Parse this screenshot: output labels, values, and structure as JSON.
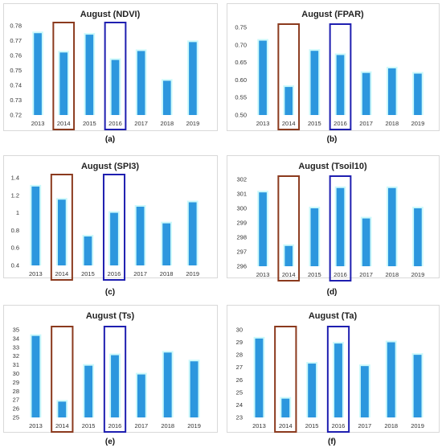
{
  "chart_data": [
    {
      "type": "bar",
      "title": "August (NDVI)",
      "caption": "(a)",
      "categories": [
        "2013",
        "2014",
        "2015",
        "2016",
        "2017",
        "2018",
        "2019"
      ],
      "values": [
        0.775,
        0.762,
        0.774,
        0.757,
        0.763,
        0.743,
        0.769
      ],
      "ylim": [
        0.72,
        0.78
      ],
      "yticks": [
        "0.72",
        "0.73",
        "0.74",
        "0.75",
        "0.76",
        "0.77",
        "0.78"
      ],
      "highlights": [
        {
          "category": "2014",
          "color": "#8b3a1e"
        },
        {
          "category": "2016",
          "color": "#1f1fb0"
        }
      ]
    },
    {
      "type": "bar",
      "title": "August (FPAR)",
      "caption": "(b)",
      "categories": [
        "2013",
        "2014",
        "2015",
        "2016",
        "2017",
        "2018",
        "2019"
      ],
      "values": [
        0.712,
        0.58,
        0.683,
        0.671,
        0.62,
        0.633,
        0.618
      ],
      "ylim": [
        0.5,
        0.75
      ],
      "yticks": [
        "0.50",
        "0.55",
        "0.60",
        "0.65",
        "0.70",
        "0.75"
      ],
      "highlights": [
        {
          "category": "2014",
          "color": "#8b3a1e"
        },
        {
          "category": "2016",
          "color": "#1f1fb0"
        }
      ]
    },
    {
      "type": "bar",
      "title": "August (SPI3)",
      "caption": "(c)",
      "categories": [
        "2013",
        "2014",
        "2015",
        "2016",
        "2017",
        "2018",
        "2019"
      ],
      "values": [
        1.3,
        1.15,
        0.73,
        1.0,
        1.07,
        0.88,
        1.12
      ],
      "ylim": [
        0.4,
        1.4
      ],
      "yticks": [
        "0.4",
        "0.6",
        "0.8",
        "1",
        "1.2",
        "1.4"
      ],
      "highlights": [
        {
          "category": "2014",
          "color": "#8b3a1e"
        },
        {
          "category": "2016",
          "color": "#1f1fb0"
        }
      ]
    },
    {
      "type": "bar",
      "title": "August (Tsoil10)",
      "caption": "(d)",
      "categories": [
        "2013",
        "2014",
        "2015",
        "2016",
        "2017",
        "2018",
        "2019"
      ],
      "values": [
        301.1,
        297.4,
        300.0,
        301.4,
        299.3,
        301.4,
        300.0
      ],
      "ylim": [
        296,
        302
      ],
      "yticks": [
        "296",
        "297",
        "298",
        "299",
        "300",
        "301",
        "302"
      ],
      "highlights": [
        {
          "category": "2014",
          "color": "#8b3a1e"
        },
        {
          "category": "2016",
          "color": "#1f1fb0"
        }
      ]
    },
    {
      "type": "bar",
      "title": "August (Ts)",
      "caption": "(e)",
      "categories": [
        "2013",
        "2014",
        "2015",
        "2016",
        "2017",
        "2018",
        "2019"
      ],
      "values": [
        34.3,
        26.8,
        30.9,
        32.1,
        29.9,
        32.4,
        31.4
      ],
      "ylim": [
        25,
        35
      ],
      "yticks": [
        "25",
        "26",
        "27",
        "28",
        "29",
        "30",
        "31",
        "32",
        "33",
        "34",
        "35"
      ],
      "highlights": [
        {
          "category": "2014",
          "color": "#8b3a1e"
        },
        {
          "category": "2016",
          "color": "#1f1fb0"
        }
      ]
    },
    {
      "type": "bar",
      "title": "August (Ta)",
      "caption": "(f)",
      "categories": [
        "2013",
        "2014",
        "2015",
        "2016",
        "2017",
        "2018",
        "2019"
      ],
      "values": [
        29.3,
        24.5,
        27.3,
        28.9,
        27.1,
        29.0,
        28.0
      ],
      "ylim": [
        23,
        30
      ],
      "yticks": [
        "23",
        "24",
        "25",
        "26",
        "27",
        "28",
        "29",
        "30"
      ],
      "highlights": [
        {
          "category": "2014",
          "color": "#8b3a1e"
        },
        {
          "category": "2016",
          "color": "#1f1fb0"
        }
      ]
    }
  ],
  "colors": {
    "bar": "#2c97de",
    "bar_glow": "#ccf9fb"
  }
}
